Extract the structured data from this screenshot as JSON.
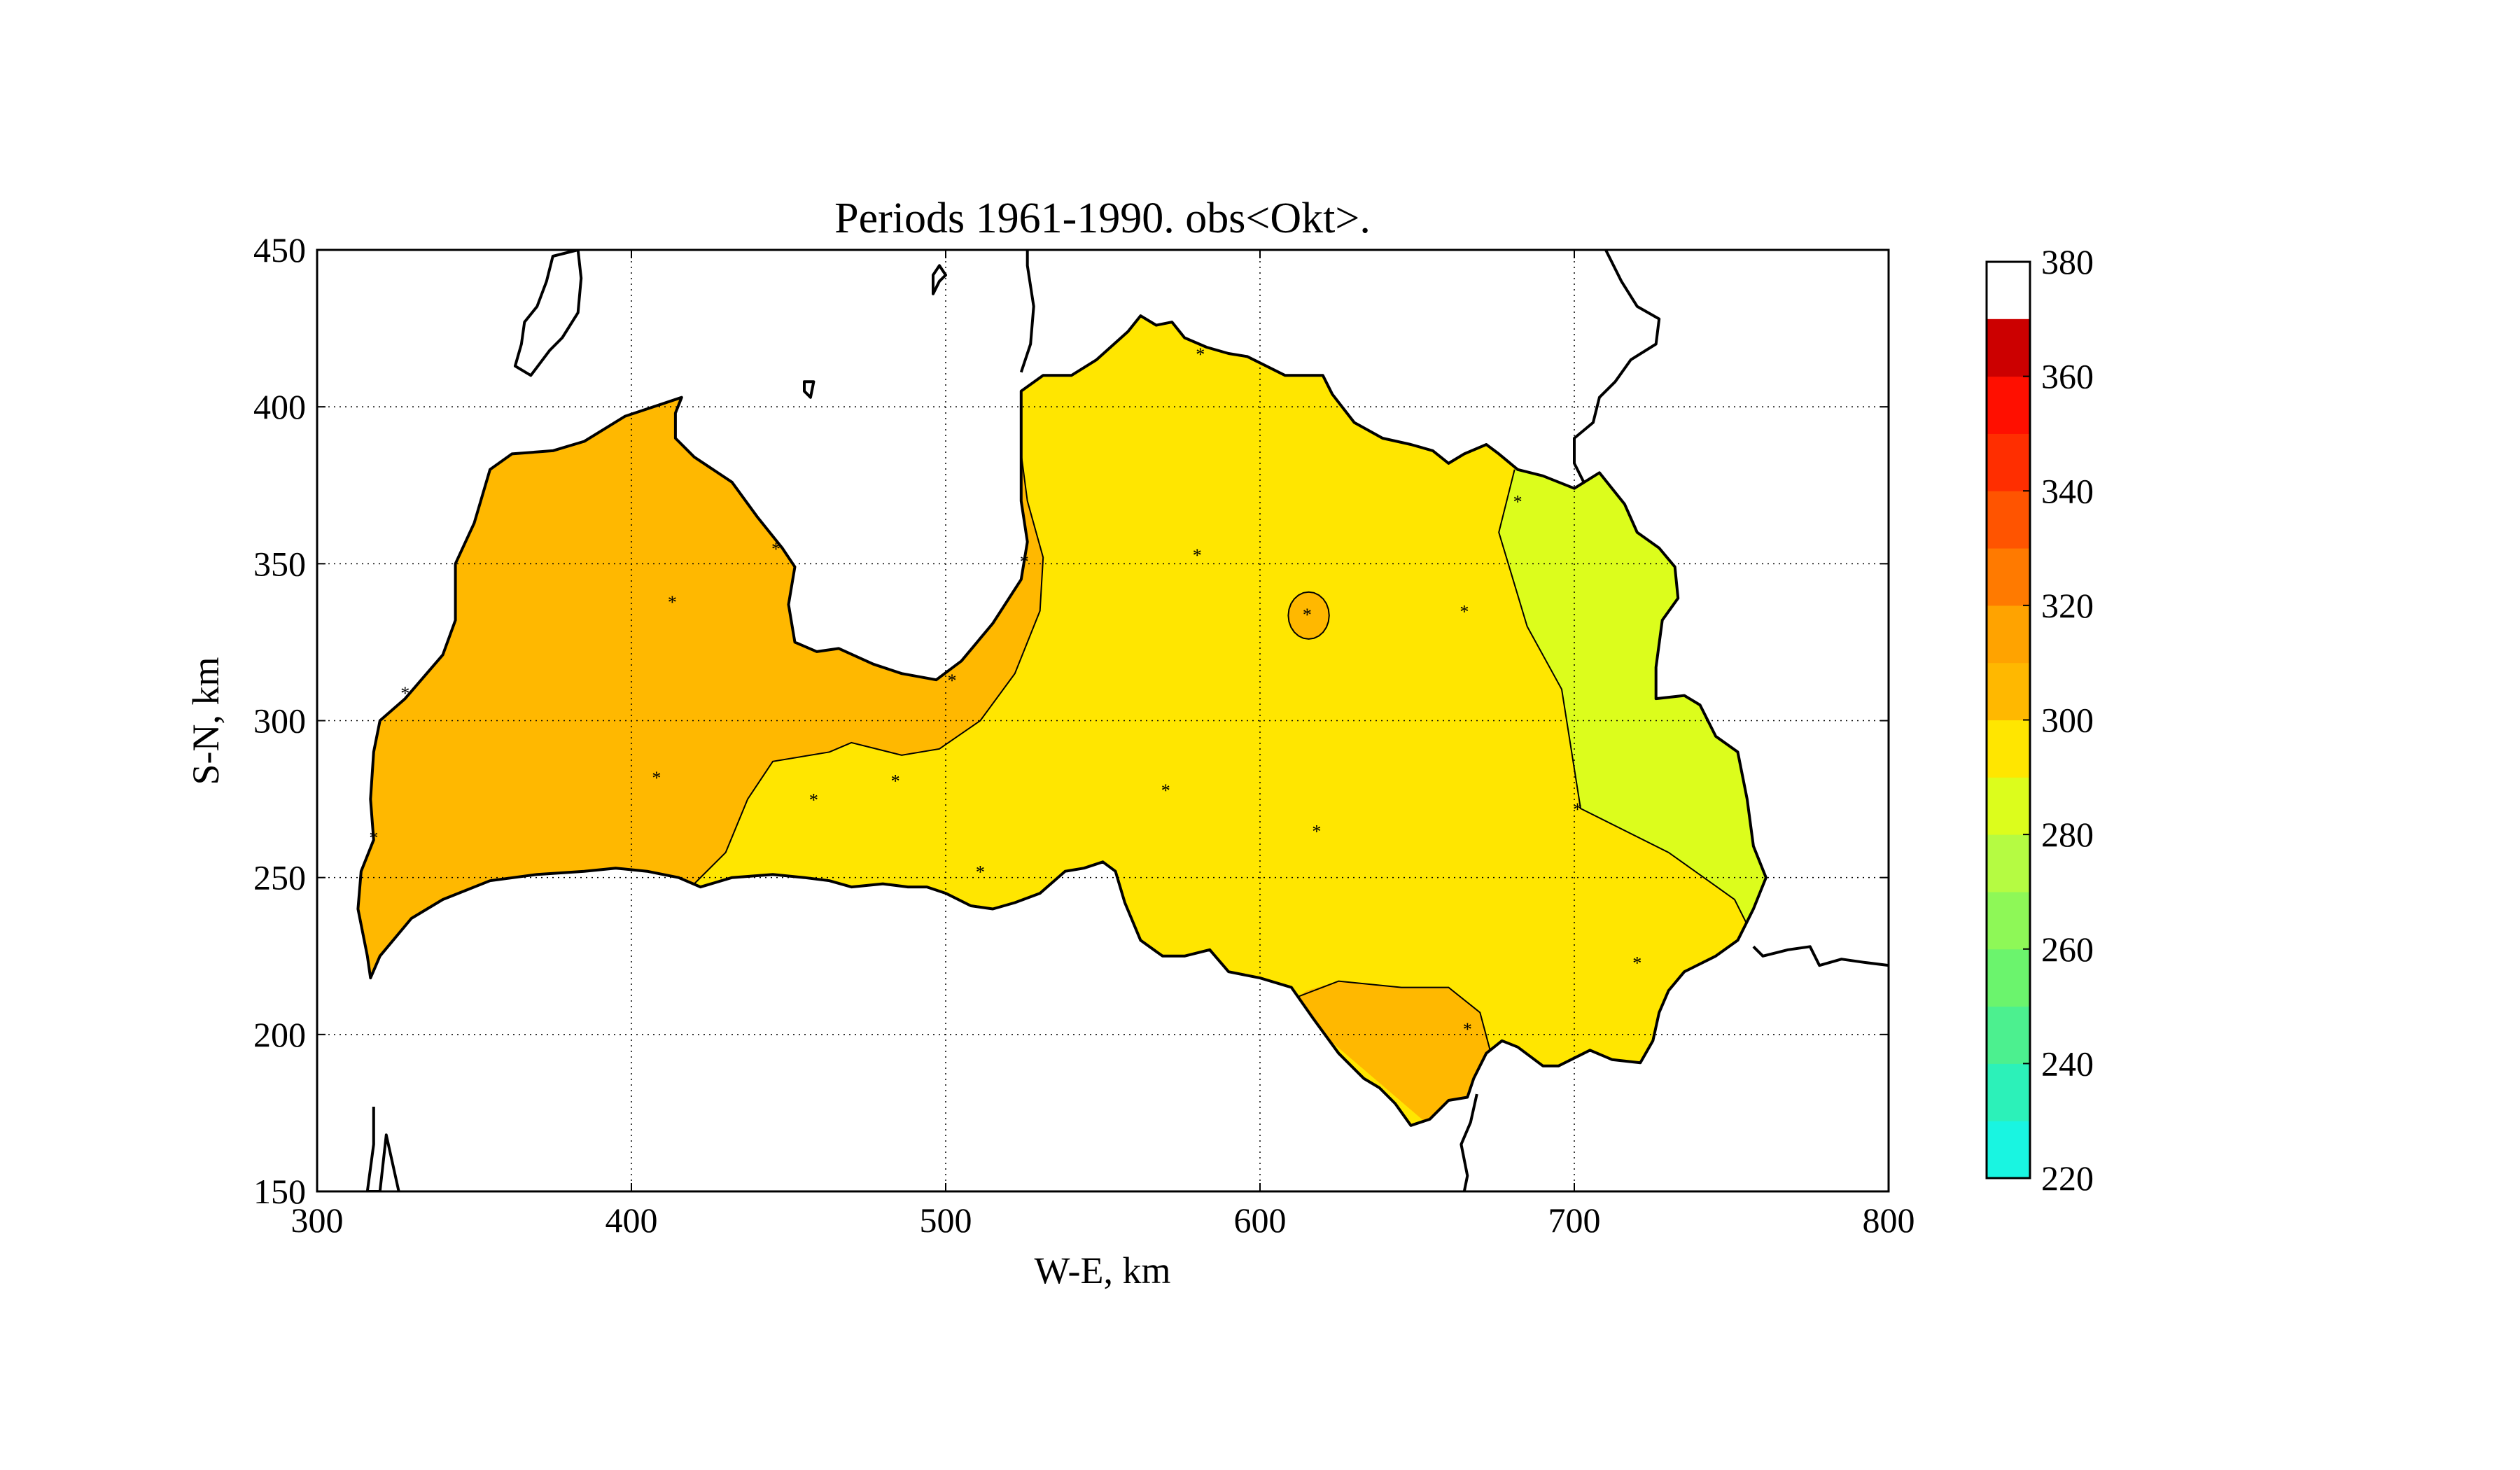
{
  "chart_data": {
    "type": "heatmap",
    "title": "Periods 1961-1990. obs<Okt>.",
    "xlabel": "W-E, km",
    "ylabel": "S-N, km",
    "xlim": [
      300,
      800
    ],
    "ylim": [
      150,
      450
    ],
    "xticks": [
      "300",
      "400",
      "500",
      "600",
      "700",
      "800"
    ],
    "yticks": [
      "150",
      "200",
      "250",
      "300",
      "350",
      "400",
      "450"
    ],
    "grid": true,
    "colorbar": {
      "range": [
        220,
        380
      ],
      "step": 10,
      "tick_labels": [
        "220",
        "240",
        "260",
        "280",
        "300",
        "320",
        "340",
        "360",
        "380"
      ],
      "colors": [
        "#19f5e1",
        "#2cf1b9",
        "#4cf08f",
        "#6bf46d",
        "#8ef857",
        "#b5fb42",
        "#dcfd1c",
        "#ffe600",
        "#ffb800",
        "#ffa300",
        "#ff7a00",
        "#ff5400",
        "#ff2e00",
        "#ff0f00",
        "#cc0000"
      ]
    },
    "regions": [
      {
        "level": "310-320",
        "color": "#ffb800"
      },
      {
        "level": "300-310",
        "color": "#ffe600"
      },
      {
        "level": "290-300",
        "color": "#dcfd1c"
      }
    ],
    "stations": [
      {
        "x": 413,
        "y": 338
      },
      {
        "x": 408,
        "y": 282
      },
      {
        "x": 458,
        "y": 275
      },
      {
        "x": 484,
        "y": 281
      },
      {
        "x": 502,
        "y": 313
      },
      {
        "x": 511,
        "y": 252
      },
      {
        "x": 525,
        "y": 351
      },
      {
        "x": 446,
        "y": 355
      },
      {
        "x": 328,
        "y": 309
      },
      {
        "x": 318,
        "y": 263
      },
      {
        "x": 581,
        "y": 417
      },
      {
        "x": 580,
        "y": 353
      },
      {
        "x": 570,
        "y": 278
      },
      {
        "x": 615,
        "y": 334
      },
      {
        "x": 618,
        "y": 265
      },
      {
        "x": 665,
        "y": 335
      },
      {
        "x": 682,
        "y": 370
      },
      {
        "x": 701,
        "y": 272
      },
      {
        "x": 720,
        "y": 223
      },
      {
        "x": 666,
        "y": 202
      }
    ]
  }
}
